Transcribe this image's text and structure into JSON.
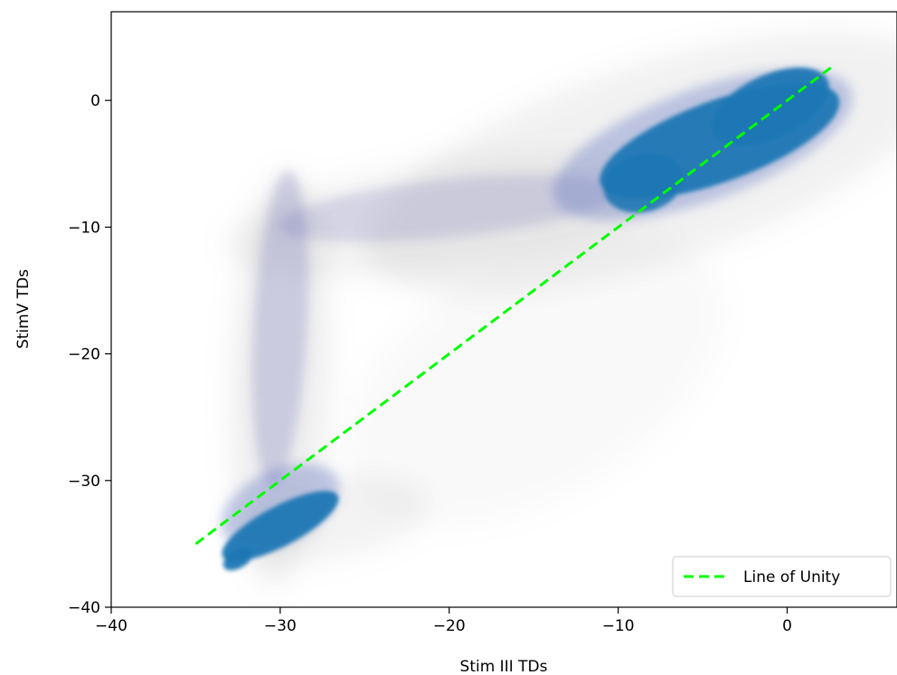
{
  "chart_data": {
    "type": "scatter",
    "xlabel": "Stim III TDs",
    "ylabel": "StimV TDs",
    "xlim": [
      -40,
      6.5
    ],
    "ylim": [
      -40,
      7
    ],
    "x_ticks": [
      -40,
      -30,
      -20,
      -10,
      0
    ],
    "y_ticks": [
      -40,
      -30,
      -20,
      -10,
      0
    ],
    "x_tick_labels": [
      "−40",
      "−30",
      "−20",
      "−10",
      "0"
    ],
    "y_tick_labels": [
      "−40",
      "−30",
      "−20",
      "−10",
      "0"
    ],
    "grid": false,
    "legend": {
      "position": "bottom-right",
      "entries": [
        "Line of Unity"
      ]
    },
    "series": [
      {
        "kind": "scatter-density",
        "color": "#1f77b4",
        "clusters": [
          {
            "region": "upper-right core",
            "x_center": -4,
            "y_center": -3.5,
            "x_range": [
              -13,
              3
            ],
            "y_range": [
              -10,
              3
            ]
          },
          {
            "region": "lower-left core",
            "x_center": -30,
            "y_center": -33.5,
            "x_range": [
              -33.5,
              -26
            ],
            "y_range": [
              -37,
              -30
            ]
          },
          {
            "region": "vertical band",
            "x_range": [
              -32.5,
              -27
            ],
            "y_range": [
              -30,
              -8
            ]
          },
          {
            "region": "horizontal band",
            "x_range": [
              -30,
              -10
            ],
            "y_range": [
              -11,
              -5
            ]
          }
        ]
      },
      {
        "name": "Line of Unity",
        "kind": "line",
        "color": "#00ff00",
        "dash": "dashed",
        "x": [
          -35,
          2.8
        ],
        "y": [
          -35,
          2.8
        ]
      }
    ]
  }
}
